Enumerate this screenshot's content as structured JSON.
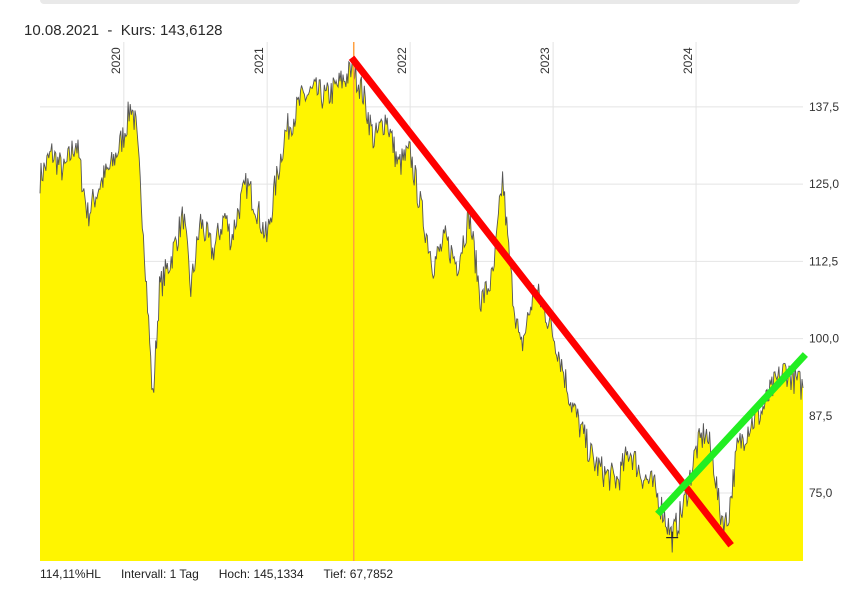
{
  "header": {
    "date": "10.08.2021",
    "separator": "-",
    "price_label": "Kurs:",
    "price_value": "143,6128"
  },
  "footer": {
    "range": "114,11%HL",
    "interval": "Intervall: 1 Tag",
    "high": "Hoch: 145,1334",
    "low": "Tief: 67,7852"
  },
  "colors": {
    "area_fill": "#fff500",
    "price_line": "#555555",
    "grid": "#e4e4e4",
    "cursor": "#ffa040",
    "down_trend": "#ff0000",
    "up_trend": "#22ee22"
  },
  "chart_data": {
    "type": "area",
    "x_ticks": [
      "2020",
      "2021",
      "2022",
      "2023",
      "2024"
    ],
    "y_ticks": [
      "75,0",
      "87,5",
      "100,0",
      "112,5",
      "125,0",
      "137,5"
    ],
    "y_tick_values": [
      75,
      87.5,
      100,
      112.5,
      125,
      137.5
    ],
    "ylim": [
      64,
      148
    ],
    "xlim": [
      "2019-06-01",
      "2024-09-30"
    ],
    "grid": true,
    "cursor": {
      "date": "2021-08-10",
      "value": 143.6128
    },
    "low_marker": {
      "date": "2023-11-01",
      "value": 67.7852
    },
    "series": [
      {
        "values": [
          [
            "2019-06-01",
            126
          ],
          [
            "2019-07-01",
            130
          ],
          [
            "2019-08-01",
            127
          ],
          [
            "2019-09-01",
            132
          ],
          [
            "2019-10-01",
            120
          ],
          [
            "2019-11-01",
            125
          ],
          [
            "2019-12-01",
            128
          ],
          [
            "2020-01-01",
            133
          ],
          [
            "2020-01-20",
            138
          ],
          [
            "2020-02-01",
            134
          ],
          [
            "2020-02-20",
            118
          ],
          [
            "2020-03-15",
            90
          ],
          [
            "2020-04-01",
            108
          ],
          [
            "2020-05-01",
            113
          ],
          [
            "2020-06-01",
            120
          ],
          [
            "2020-06-20",
            108
          ],
          [
            "2020-07-15",
            119
          ],
          [
            "2020-08-15",
            114
          ],
          [
            "2020-09-15",
            120
          ],
          [
            "2020-10-01",
            116
          ],
          [
            "2020-10-20",
            121
          ],
          [
            "2020-11-10",
            125
          ],
          [
            "2020-12-01",
            122
          ],
          [
            "2020-12-31",
            116
          ],
          [
            "2021-01-20",
            124
          ],
          [
            "2021-02-15",
            133
          ],
          [
            "2021-03-10",
            136
          ],
          [
            "2021-04-01",
            139
          ],
          [
            "2021-05-01",
            140
          ],
          [
            "2021-06-01",
            139
          ],
          [
            "2021-07-01",
            141
          ],
          [
            "2021-08-10",
            143.6
          ],
          [
            "2021-09-01",
            140
          ],
          [
            "2021-10-01",
            132
          ],
          [
            "2021-11-01",
            136
          ],
          [
            "2021-12-01",
            128
          ],
          [
            "2022-01-01",
            130
          ],
          [
            "2022-02-01",
            120
          ],
          [
            "2022-03-01",
            112
          ],
          [
            "2022-04-01",
            116
          ],
          [
            "2022-05-01",
            112
          ],
          [
            "2022-06-01",
            120
          ],
          [
            "2022-07-01",
            106
          ],
          [
            "2022-08-01",
            110
          ],
          [
            "2022-08-25",
            126
          ],
          [
            "2022-09-15",
            110
          ],
          [
            "2022-10-10",
            98
          ],
          [
            "2022-11-15",
            108
          ],
          [
            "2022-12-15",
            104
          ],
          [
            "2023-01-15",
            98
          ],
          [
            "2023-02-15",
            90
          ],
          [
            "2023-03-15",
            85
          ],
          [
            "2023-04-15",
            80
          ],
          [
            "2023-05-15",
            78
          ],
          [
            "2023-06-15",
            77
          ],
          [
            "2023-07-15",
            82
          ],
          [
            "2023-08-15",
            78
          ],
          [
            "2023-09-15",
            76
          ],
          [
            "2023-10-15",
            71
          ],
          [
            "2023-11-01",
            67.8
          ],
          [
            "2023-12-01",
            73
          ],
          [
            "2024-01-01",
            82
          ],
          [
            "2024-01-25",
            85
          ],
          [
            "2024-02-15",
            80
          ],
          [
            "2024-03-01",
            72
          ],
          [
            "2024-03-20",
            70
          ],
          [
            "2024-04-15",
            82
          ],
          [
            "2024-05-15",
            86
          ],
          [
            "2024-06-15",
            88
          ],
          [
            "2024-07-15",
            92
          ],
          [
            "2024-08-15",
            95
          ],
          [
            "2024-09-30",
            92
          ]
        ]
      }
    ],
    "trendlines": [
      {
        "kind": "down",
        "from": [
          "2021-08-10",
          145
        ],
        "to": [
          "2024-03-25",
          67
        ]
      },
      {
        "kind": "up",
        "from": [
          "2023-10-01",
          72
        ],
        "to": [
          "2024-09-30",
          97
        ]
      }
    ]
  }
}
